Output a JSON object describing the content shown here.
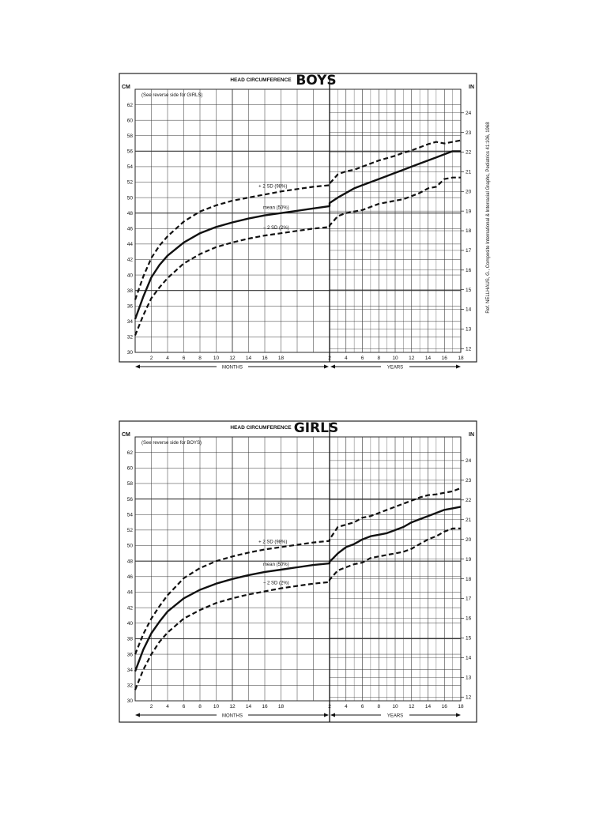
{
  "chart_data": [
    {
      "type": "line",
      "title": "HEAD CIRCUMFERENCE",
      "subtitle": "BOYS",
      "note": "(See reverse side for GIRLS)",
      "left_unit": "CM",
      "right_unit": "IN",
      "side_ref": "Ref. NELLHAUS, G., Composite International & Interracial Graphs, Pediatrics 41:106, 1968",
      "months_label": "MONTHS",
      "years_label": "YEARS",
      "months_ticks": [
        "2",
        "4",
        "6",
        "8",
        "10",
        "12",
        "14",
        "16",
        "18"
      ],
      "years_ticks": [
        "2",
        "4",
        "6",
        "8",
        "10",
        "12",
        "14",
        "16",
        "18"
      ],
      "cm_ticks": [
        "30",
        "32",
        "34",
        "36",
        "38",
        "40",
        "42",
        "44",
        "46",
        "48",
        "50",
        "52",
        "54",
        "56",
        "58",
        "60",
        "62"
      ],
      "in_ticks": [
        "12",
        "13",
        "14",
        "15",
        "16",
        "17",
        "18",
        "19",
        "20",
        "21",
        "22",
        "23",
        "24"
      ],
      "ylim_cm": [
        30,
        64
      ],
      "labels": {
        "upper": "+ 2 SD (98%)",
        "mean": "mean (50%)",
        "lower": "− 2 SD (2%)"
      },
      "series": [
        {
          "name": "+ 2 SD (98%)",
          "style": "dashed",
          "months": {
            "x": [
              0,
              1,
              2,
              3,
              4,
              6,
              8,
              10,
              12,
              14,
              16,
              18,
              20,
              22,
              24
            ],
            "y": [
              36.8,
              39.8,
              42.2,
              43.8,
              45.0,
              46.9,
              48.2,
              49.0,
              49.6,
              50.0,
              50.4,
              50.8,
              51.1,
              51.4,
              51.6
            ]
          },
          "years": {
            "x": [
              2,
              3,
              4,
              5,
              6,
              7,
              8,
              9,
              10,
              11,
              12,
              13,
              14,
              15,
              16,
              17,
              18
            ],
            "y": [
              51.8,
              53.0,
              53.4,
              53.6,
              54.0,
              54.4,
              54.8,
              55.1,
              55.4,
              55.8,
              56.1,
              56.5,
              56.9,
              57.2,
              57.0,
              57.2,
              57.4
            ]
          }
        },
        {
          "name": "mean (50%)",
          "style": "solid",
          "months": {
            "x": [
              0,
              1,
              2,
              3,
              4,
              6,
              8,
              10,
              12,
              14,
              16,
              18,
              20,
              22,
              24
            ],
            "y": [
              34.3,
              37.2,
              39.7,
              41.3,
              42.5,
              44.2,
              45.4,
              46.2,
              46.8,
              47.3,
              47.7,
              48.0,
              48.3,
              48.6,
              48.9
            ]
          },
          "years": {
            "x": [
              2,
              3,
              4,
              5,
              6,
              7,
              8,
              9,
              10,
              11,
              12,
              13,
              14,
              15,
              16,
              17,
              18
            ],
            "y": [
              49.3,
              50.0,
              50.6,
              51.2,
              51.6,
              52.0,
              52.4,
              52.8,
              53.2,
              53.6,
              54.0,
              54.4,
              54.8,
              55.2,
              55.6,
              56.0,
              56.0
            ]
          }
        },
        {
          "name": "− 2 SD (2%)",
          "style": "dashed",
          "months": {
            "x": [
              0,
              1,
              2,
              3,
              4,
              6,
              8,
              10,
              12,
              14,
              16,
              18,
              20,
              22,
              24
            ],
            "y": [
              32.2,
              34.8,
              37.0,
              38.4,
              39.6,
              41.5,
              42.7,
              43.6,
              44.2,
              44.7,
              45.1,
              45.4,
              45.7,
              46.0,
              46.2
            ]
          },
          "years": {
            "x": [
              2,
              3,
              4,
              5,
              6,
              7,
              8,
              9,
              10,
              11,
              12,
              13,
              14,
              15,
              16,
              17,
              18
            ],
            "y": [
              46.4,
              47.6,
              48.0,
              48.2,
              48.4,
              48.8,
              49.2,
              49.4,
              49.6,
              49.8,
              50.2,
              50.6,
              51.2,
              51.4,
              52.4,
              52.6,
              52.6
            ]
          }
        }
      ]
    },
    {
      "type": "line",
      "title": "HEAD CIRCUMFERENCE",
      "subtitle": "GIRLS",
      "note": "(See reverse side for BOYS)",
      "left_unit": "CM",
      "right_unit": "IN",
      "side_ref": "",
      "months_label": "MONTHS",
      "years_label": "YEARS",
      "months_ticks": [
        "2",
        "4",
        "6",
        "8",
        "10",
        "12",
        "14",
        "16",
        "18"
      ],
      "years_ticks": [
        "2",
        "4",
        "6",
        "8",
        "10",
        "12",
        "14",
        "16",
        "18"
      ],
      "cm_ticks": [
        "30",
        "32",
        "34",
        "36",
        "38",
        "40",
        "42",
        "44",
        "46",
        "48",
        "50",
        "52",
        "54",
        "56",
        "58",
        "60",
        "62"
      ],
      "in_ticks": [
        "12",
        "13",
        "14",
        "15",
        "16",
        "17",
        "18",
        "19",
        "20",
        "21",
        "22",
        "23",
        "24"
      ],
      "ylim_cm": [
        30,
        64
      ],
      "labels": {
        "upper": "+ 2 SD (98%)",
        "mean": "mean (50%)",
        "lower": "− 2 SD (2%)"
      },
      "series": [
        {
          "name": "+ 2 SD (98%)",
          "style": "dashed",
          "months": {
            "x": [
              0,
              1,
              2,
              3,
              4,
              6,
              8,
              10,
              12,
              14,
              16,
              18,
              20,
              22,
              24
            ],
            "y": [
              36.0,
              38.6,
              40.6,
              42.2,
              43.6,
              45.8,
              47.1,
              48.0,
              48.6,
              49.1,
              49.5,
              49.8,
              50.1,
              50.4,
              50.6
            ]
          },
          "years": {
            "x": [
              2,
              3,
              4,
              5,
              6,
              7,
              8,
              9,
              10,
              11,
              12,
              13,
              14,
              15,
              16,
              17,
              18
            ],
            "y": [
              50.8,
              52.4,
              52.7,
              53.0,
              53.6,
              53.8,
              54.2,
              54.6,
              55.0,
              55.4,
              55.8,
              56.2,
              56.5,
              56.6,
              56.8,
              57.0,
              57.4
            ]
          }
        },
        {
          "name": "mean (50%)",
          "style": "solid",
          "months": {
            "x": [
              0,
              1,
              2,
              3,
              4,
              6,
              8,
              10,
              12,
              14,
              16,
              18,
              20,
              22,
              24
            ],
            "y": [
              33.8,
              36.6,
              38.7,
              40.2,
              41.5,
              43.2,
              44.3,
              45.1,
              45.7,
              46.2,
              46.6,
              46.9,
              47.2,
              47.5,
              47.7
            ]
          },
          "years": {
            "x": [
              2,
              3,
              4,
              5,
              6,
              7,
              8,
              9,
              10,
              11,
              12,
              13,
              14,
              15,
              16,
              17,
              18
            ],
            "y": [
              47.9,
              49.0,
              49.8,
              50.2,
              50.8,
              51.2,
              51.4,
              51.6,
              52.0,
              52.4,
              53.0,
              53.4,
              53.8,
              54.2,
              54.6,
              54.8,
              55.0
            ]
          }
        },
        {
          "name": "− 2 SD (2%)",
          "style": "dashed",
          "months": {
            "x": [
              0,
              1,
              2,
              3,
              4,
              6,
              8,
              10,
              12,
              14,
              16,
              18,
              20,
              22,
              24
            ],
            "y": [
              31.4,
              34.0,
              36.0,
              37.6,
              38.8,
              40.6,
              41.7,
              42.6,
              43.2,
              43.7,
              44.1,
              44.5,
              44.8,
              45.1,
              45.3
            ]
          },
          "years": {
            "x": [
              2,
              3,
              4,
              5,
              6,
              7,
              8,
              9,
              10,
              11,
              12,
              13,
              14,
              15,
              16,
              17,
              18
            ],
            "y": [
              45.6,
              46.8,
              47.2,
              47.6,
              47.8,
              48.4,
              48.6,
              48.8,
              49.0,
              49.2,
              49.6,
              50.2,
              50.8,
              51.2,
              51.8,
              52.2,
              52.2
            ]
          }
        }
      ]
    }
  ]
}
